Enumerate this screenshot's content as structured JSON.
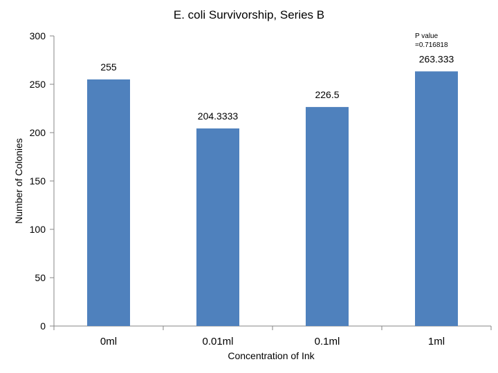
{
  "chart_data": {
    "type": "bar",
    "title": "E. coli Survivorship, Series B",
    "xlabel": "Concentration of Ink",
    "ylabel": "Number of Colonies",
    "categories": [
      "0ml",
      "0.01ml",
      "0.1ml",
      "1ml"
    ],
    "values": [
      255,
      204.3333,
      226.5,
      263.333
    ],
    "data_labels": [
      "255",
      "204.3333",
      "226.5",
      "263.333"
    ],
    "ylim": [
      0,
      300
    ],
    "yticks": [
      0,
      50,
      100,
      150,
      200,
      250,
      300
    ],
    "grid": false,
    "legend": "none",
    "bar_color": "#4f81bd",
    "annotation_lines": [
      "P value",
      "=0.716818"
    ]
  }
}
